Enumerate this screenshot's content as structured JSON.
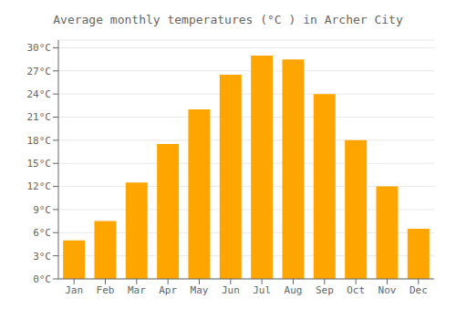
{
  "chart_data": {
    "type": "bar",
    "title": "Average monthly temperatures (°C ) in Archer City",
    "categories": [
      "Jan",
      "Feb",
      "Mar",
      "Apr",
      "May",
      "Jun",
      "Jul",
      "Aug",
      "Sep",
      "Oct",
      "Nov",
      "Dec"
    ],
    "values": [
      5.0,
      7.5,
      12.5,
      17.5,
      22.0,
      26.5,
      29.0,
      28.5,
      24.0,
      18.0,
      12.0,
      6.5
    ],
    "color": "#FFA500",
    "ylim": [
      0,
      31
    ],
    "yticks": [
      {
        "value": 0,
        "label": "0°C"
      },
      {
        "value": 3,
        "label": "3°C"
      },
      {
        "value": 6,
        "label": "6°C"
      },
      {
        "value": 9,
        "label": "9°C"
      },
      {
        "value": 12,
        "label": "12°C"
      },
      {
        "value": 15,
        "label": "15°C"
      },
      {
        "value": 18,
        "label": "18°C"
      },
      {
        "value": 21,
        "label": "21°C"
      },
      {
        "value": 24,
        "label": "24°C"
      },
      {
        "value": 27,
        "label": "27°C"
      },
      {
        "value": 30,
        "label": "30°C"
      }
    ],
    "grid": true
  }
}
